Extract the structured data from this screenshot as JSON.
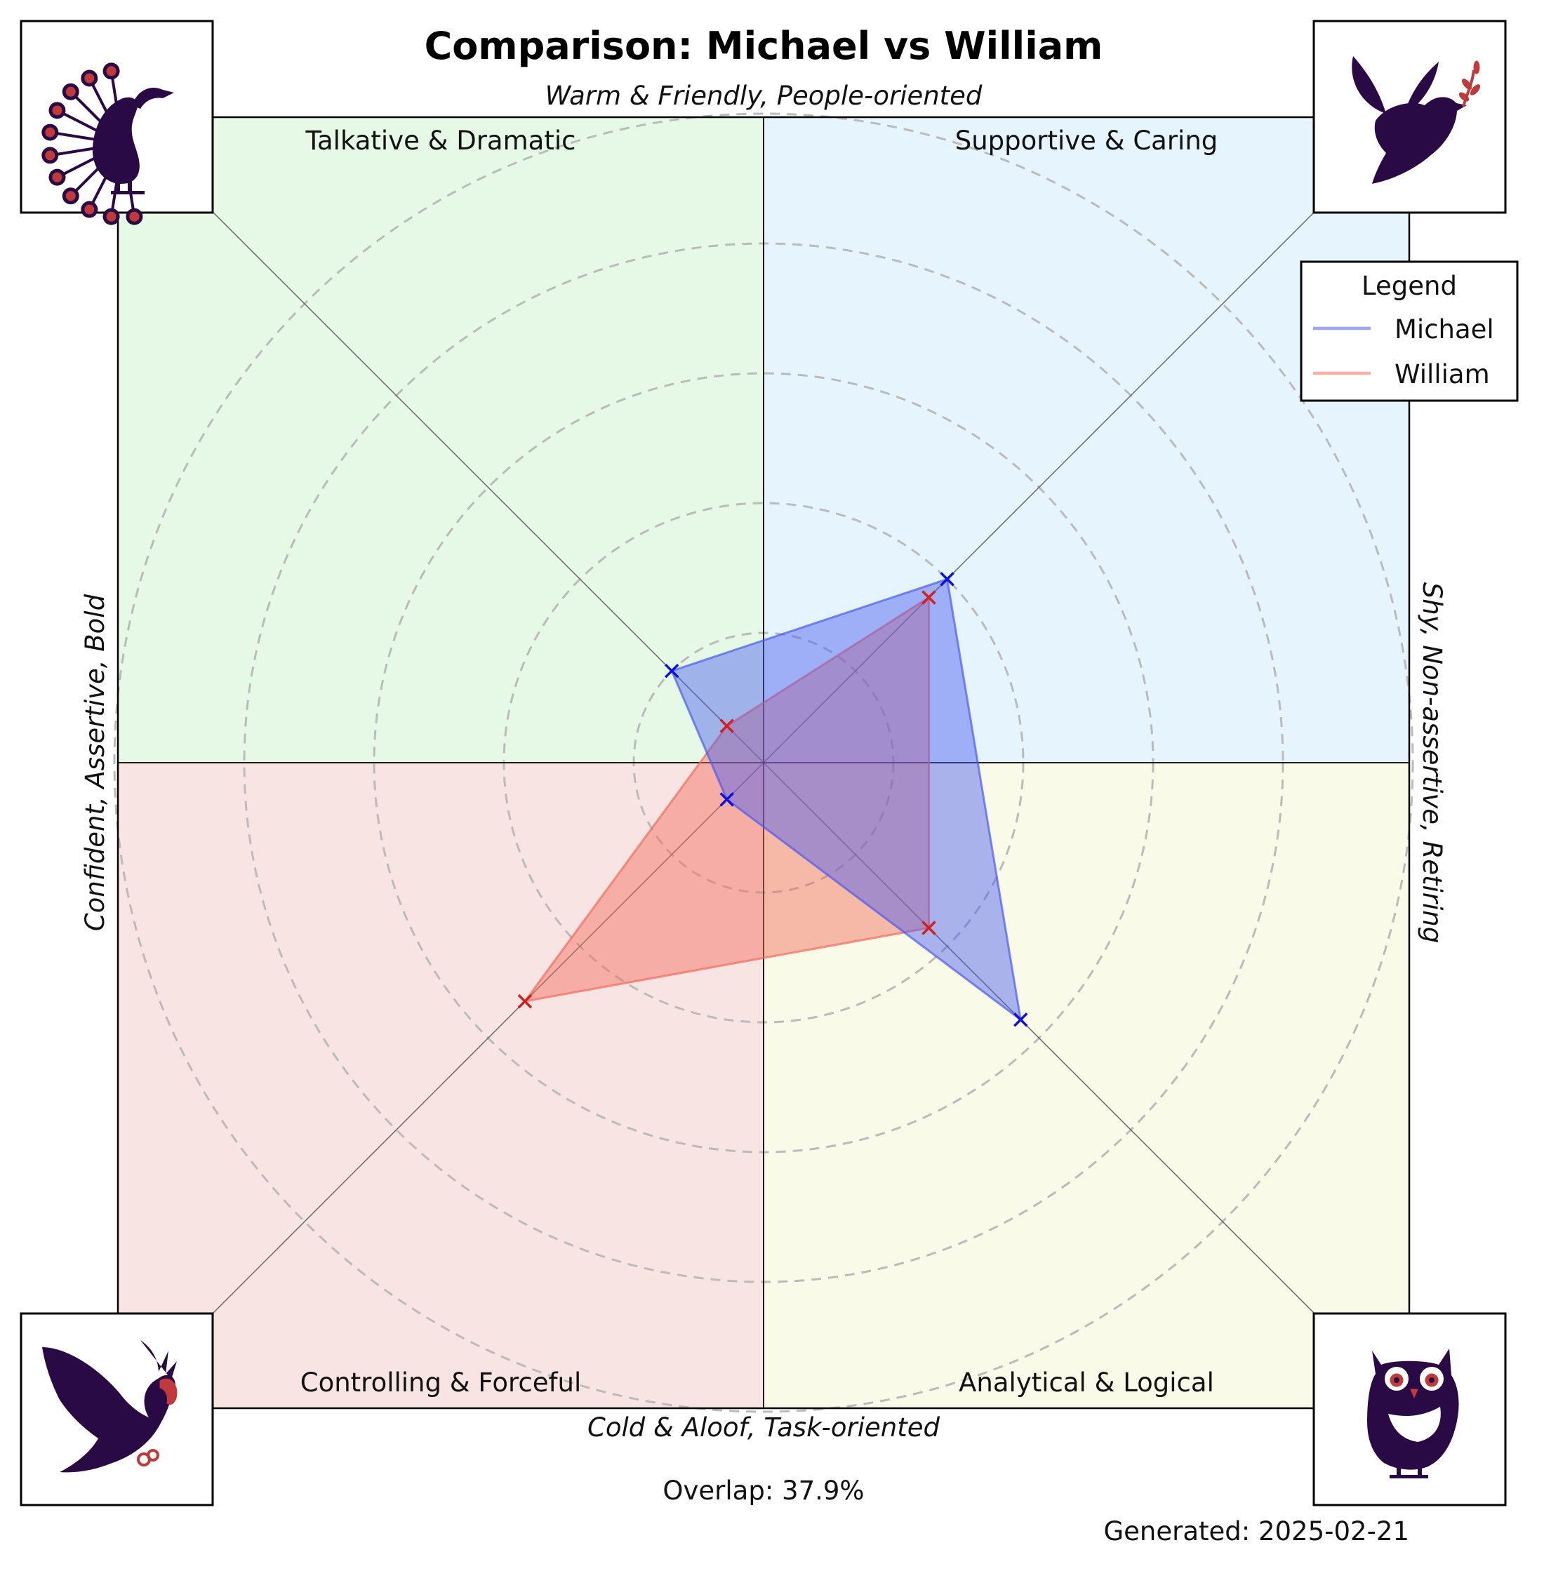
{
  "chart_data": {
    "type": "radar",
    "title": "Comparison: Michael vs William",
    "axis_labels": {
      "top": "Warm & Friendly, People-oriented",
      "bottom": "Cold & Aloof, Task-oriented",
      "left": "Confident, Assertive, Bold",
      "right": "Shy, Non-assertive, Retiring"
    },
    "quadrants": [
      {
        "id": "top-left",
        "label": "Talkative & Dramatic",
        "color": "#e6f9e6",
        "icon": "peacock-icon"
      },
      {
        "id": "top-right",
        "label": "Supportive & Caring",
        "color": "#e6f4fd",
        "icon": "dove-icon"
      },
      {
        "id": "bottom-left",
        "label": "Controlling & Forceful",
        "color": "#f9e4e4",
        "icon": "eagle-icon"
      },
      {
        "id": "bottom-right",
        "label": "Analytical & Logical",
        "color": "#fafae8",
        "icon": "owl-icon"
      }
    ],
    "axes": [
      "Talkative & Dramatic",
      "Supportive & Caring",
      "Analytical & Logical",
      "Controlling & Forceful"
    ],
    "r_max": 5,
    "rings": [
      1,
      2,
      3,
      4,
      5
    ],
    "series": [
      {
        "name": "Michael",
        "color": "#4a5cf0",
        "values": [
          1.0,
          2.0,
          2.8,
          0.4
        ]
      },
      {
        "name": "William",
        "color": "#f26b5b",
        "values": [
          0.4,
          1.8,
          1.8,
          2.6
        ]
      }
    ],
    "legend": {
      "title": "Legend",
      "position": "top-right"
    },
    "overlap_label": "Overlap: 37.9%",
    "generated_label": "Generated: 2025-02-21",
    "icon_accent": "#c0393b",
    "icon_dark": "#2a0a45"
  }
}
